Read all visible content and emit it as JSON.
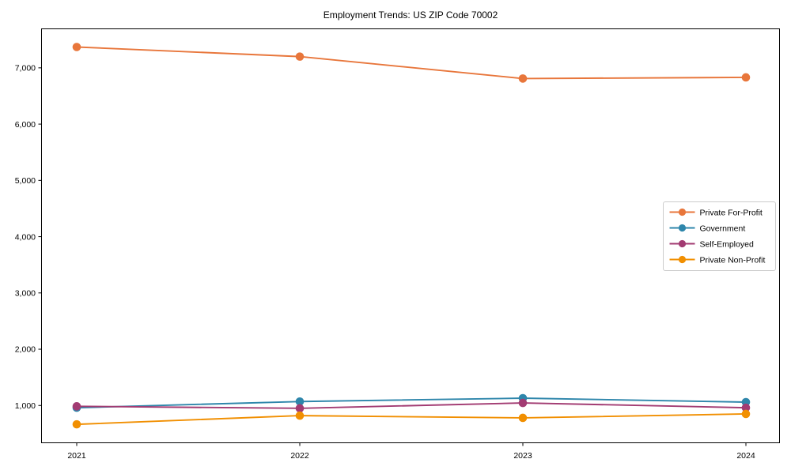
{
  "chart": {
    "title": "Employment Trends: US ZIP Code 70002"
  },
  "chart_data": {
    "type": "line",
    "title": "Employment Trends: US ZIP Code 70002",
    "categories": [
      "2021",
      "2022",
      "2023",
      "2024"
    ],
    "series": [
      {
        "name": "Private For-Profit",
        "color": "#E8763B",
        "values": [
          7370,
          7200,
          6810,
          6830
        ]
      },
      {
        "name": "Government",
        "color": "#2E86AB",
        "values": [
          960,
          1070,
          1130,
          1060
        ]
      },
      {
        "name": "Self-Employed",
        "color": "#A23B72",
        "values": [
          985,
          950,
          1045,
          960
        ]
      },
      {
        "name": "Private Non-Profit",
        "color": "#F18F01",
        "values": [
          665,
          820,
          780,
          850
        ]
      }
    ],
    "xlabel": "",
    "ylabel": "",
    "ylim": [
      330,
      7700
    ],
    "yticks": [
      1000,
      2000,
      3000,
      4000,
      5000,
      6000,
      7000
    ],
    "ytick_labels": [
      "1,000",
      "2,000",
      "3,000",
      "4,000",
      "5,000",
      "6,000",
      "7,000"
    ],
    "xtick_labels": [
      "2021",
      "2022",
      "2023",
      "2024"
    ],
    "grid": false,
    "background": "#ffffff",
    "spine_color": "#000000",
    "marker": "circle",
    "legend": {
      "position": "right-middle",
      "border_color": "#cccccc",
      "entries": [
        "Private For-Profit",
        "Government",
        "Self-Employed",
        "Private Non-Profit"
      ]
    }
  }
}
